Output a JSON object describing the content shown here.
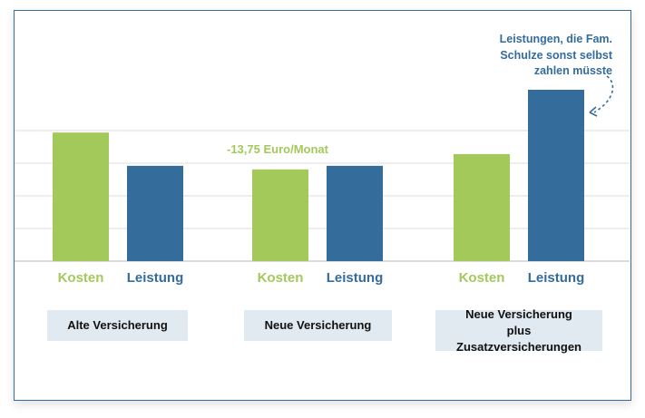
{
  "chart_data": {
    "type": "bar",
    "title": "",
    "xlabel": "",
    "ylabel": "",
    "ylim": [
      0,
      7.7
    ],
    "grid": true,
    "gridlines": [
      1,
      2,
      3,
      4
    ],
    "categories": [
      "Alte Versicherung",
      "Neue Versicherung",
      "Neue Versicherung plus Zusatzversicherungen"
    ],
    "series": [
      {
        "name": "Kosten",
        "color": "#a3c95b",
        "values": [
          3.94,
          2.81,
          3.28
        ]
      },
      {
        "name": "Leistung",
        "color": "#346c9c",
        "values": [
          2.92,
          2.92,
          5.25
        ]
      }
    ],
    "annotations": {
      "difference": "-13,75 Euro/Monat",
      "note": "Leistungen, die Fam.\nSchulze sonst selbst\nzahlen müsste"
    }
  }
}
